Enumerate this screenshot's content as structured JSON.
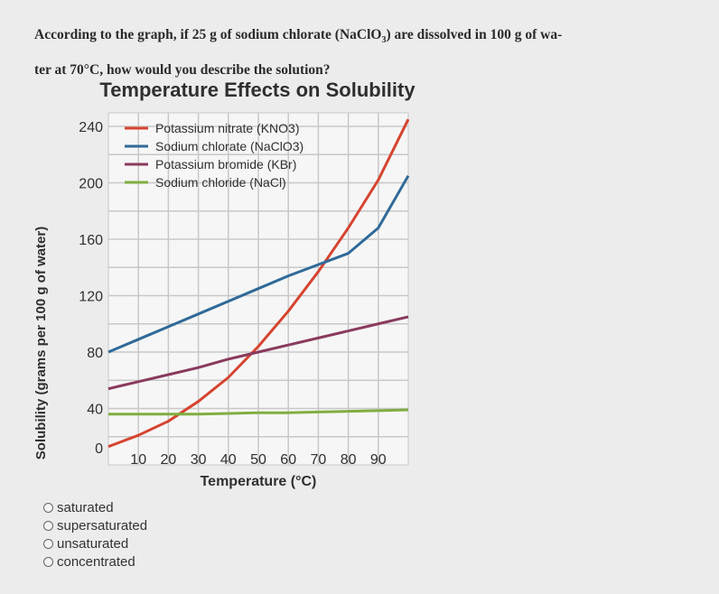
{
  "question": {
    "line1": "According to the graph, if 25 g of sodium chlorate (NaClO",
    "line1_sub": "3",
    "line1_end": ") are dissolved in 100 g of wa-",
    "line2": "ter at 70°C, how would you describe the solution?"
  },
  "options": [
    {
      "label": "saturated"
    },
    {
      "label": "supersaturated"
    },
    {
      "label": "unsaturated"
    },
    {
      "label": "concentrated"
    }
  ],
  "chart_data": {
    "type": "line",
    "title": "Temperature Effects on Solubility",
    "xlabel": "Temperature (°C)",
    "ylabel": "Solubility (grams per 100 g of water)",
    "xlim": [
      0,
      100
    ],
    "ylim": [
      0,
      240
    ],
    "x_ticks": [
      10,
      20,
      30,
      40,
      50,
      60,
      70,
      80,
      90
    ],
    "y_ticks": [
      0,
      40,
      80,
      120,
      160,
      200,
      240
    ],
    "grid": true,
    "legend_position": "top-left",
    "series": [
      {
        "name": "Potassium nitrate (KNO3)",
        "color": "#d6432f",
        "x": [
          0,
          10,
          20,
          30,
          40,
          50,
          60,
          70,
          80,
          90,
          100
        ],
        "y": [
          13,
          21,
          31,
          45,
          62,
          84,
          109,
          137,
          168,
          202,
          245
        ]
      },
      {
        "name": "Sodium chlorate (NaClO3)",
        "color": "#2f6a99",
        "x": [
          0,
          10,
          20,
          30,
          40,
          50,
          60,
          70,
          80,
          90,
          100
        ],
        "y": [
          80,
          89,
          98,
          107,
          116,
          125,
          134,
          142,
          150,
          168,
          205
        ]
      },
      {
        "name": "Potassium bromide (KBr)",
        "color": "#8a3a5e",
        "x": [
          0,
          10,
          20,
          30,
          40,
          50,
          60,
          70,
          80,
          90,
          100
        ],
        "y": [
          54,
          59,
          64,
          69,
          75,
          80,
          85,
          90,
          95,
          100,
          105
        ]
      },
      {
        "name": "Sodium chloride (NaCl)",
        "color": "#7fae3f",
        "x": [
          0,
          10,
          20,
          30,
          40,
          50,
          60,
          70,
          80,
          90,
          100
        ],
        "y": [
          36,
          36,
          36,
          36,
          36.5,
          37,
          37,
          37.5,
          38,
          38.5,
          39
        ]
      }
    ]
  }
}
